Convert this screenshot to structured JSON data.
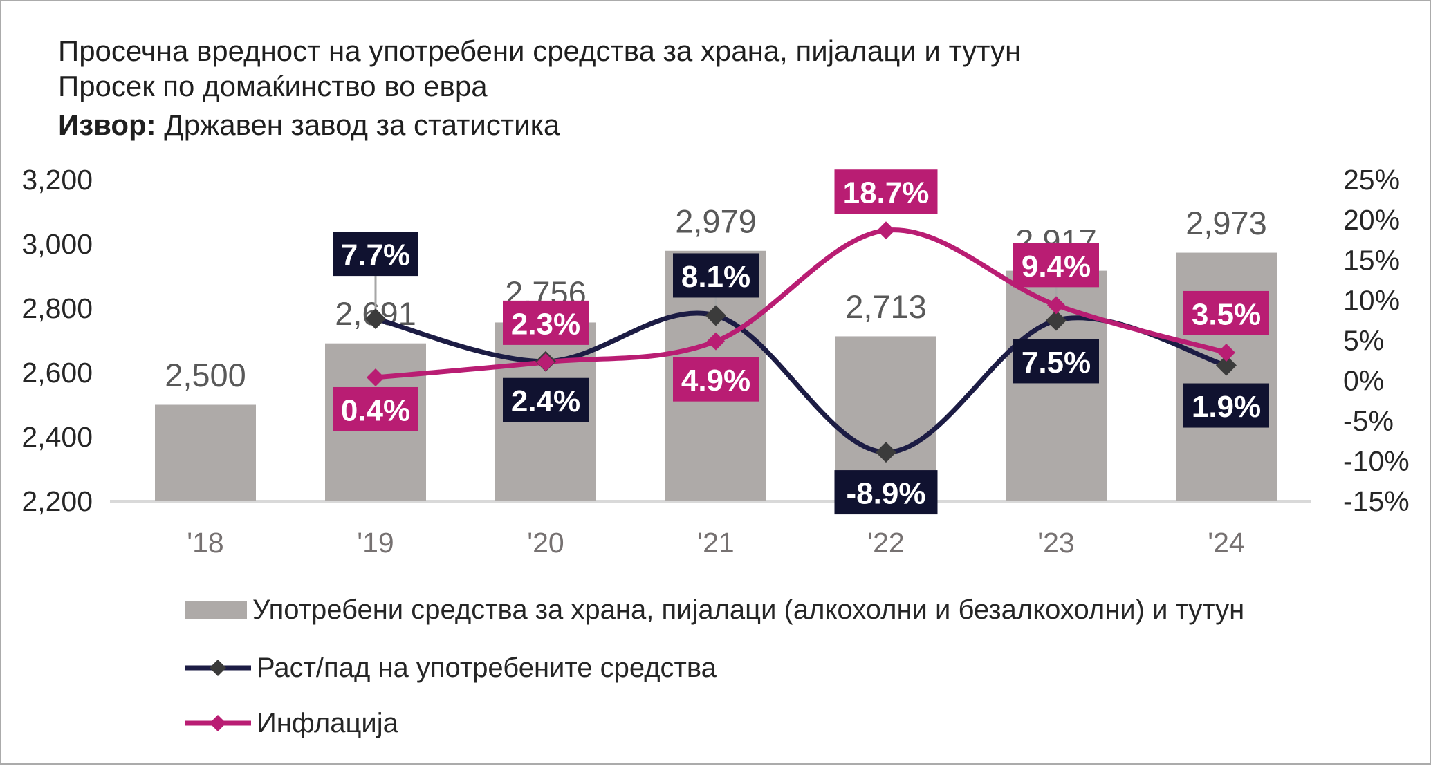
{
  "header": {
    "title": "Просечна вредност на употребени средства за храна, пијалаци и тутун",
    "subtitle": "Просек по домаќинство во евра",
    "source_label": "Извор:",
    "source_text": " Државен завод за статистика"
  },
  "colors": {
    "bar": "#AEAAA8",
    "navy_box": "#101230",
    "navy_line": "#1C1C44",
    "navy_marker": "#3B3B3B",
    "pink": "#B91D73",
    "axis_line": "#D9D9D9",
    "leader": "#A6A6A6",
    "axis_label": "#262626",
    "bar_label": "#595959",
    "x_label": "#767171",
    "box_text": "#FFFFFF"
  },
  "chart_data": {
    "type": "combo: bar + 2 smoothed lines",
    "title": "Просечна вредност на употребени средства за храна, пијалаци и тутун",
    "subtitle": "Просек по домаќинство во евра",
    "source": "Извор: Државен завод за статистика",
    "categories": [
      "'18",
      "'19",
      "'20",
      "'21",
      "'22",
      "'23",
      "'24"
    ],
    "grid": "off",
    "legend_position": "bottom-left",
    "left_axis": {
      "min": 2200,
      "max": 3200,
      "step": 200,
      "ticks": [
        {
          "value": 2200,
          "label": "2,200"
        },
        {
          "value": 2400,
          "label": "2,400"
        },
        {
          "value": 2600,
          "label": "2,600"
        },
        {
          "value": 2800,
          "label": "2,800"
        },
        {
          "value": 3000,
          "label": "3,000"
        },
        {
          "value": 3200,
          "label": "3,200"
        }
      ]
    },
    "right_axis": {
      "min": -15,
      "max": 25,
      "step": 5,
      "ticks": [
        {
          "value": -15,
          "label": "-15%"
        },
        {
          "value": -10,
          "label": "-10%"
        },
        {
          "value": -5,
          "label": "-5%"
        },
        {
          "value": 0,
          "label": "0%"
        },
        {
          "value": 5,
          "label": "5%"
        },
        {
          "value": 10,
          "label": "10%"
        },
        {
          "value": 15,
          "label": "15%"
        },
        {
          "value": 20,
          "label": "20%"
        },
        {
          "value": 25,
          "label": "25%"
        }
      ]
    },
    "bar_series": {
      "name": "Употребени средства за храна, пијалаци (алкохолни и безалкохолни) и тутун",
      "axis": "left",
      "values": [
        2500,
        2691,
        2756,
        2979,
        2713,
        2917,
        2973
      ],
      "value_labels": [
        "2,500",
        "2,691",
        "2,756",
        "2,979",
        "2,713",
        "2,917",
        "2,973"
      ]
    },
    "line_series": [
      {
        "name": "Раст/пад на употребените средства",
        "axis": "right",
        "color_key": "navy_line",
        "marker_color_key": "navy_marker",
        "box_color_key": "navy_box",
        "values": [
          null,
          7.7,
          2.4,
          8.1,
          -8.9,
          7.5,
          1.9
        ],
        "labels": [
          null,
          {
            "text": "7.7%",
            "side": "above",
            "gap": 62,
            "leader": true
          },
          {
            "text": "2.4%",
            "side": "below",
            "gap": 24,
            "leader": false
          },
          {
            "text": "8.1%",
            "side": "above",
            "gap": 26,
            "leader": true
          },
          {
            "text": "-8.9%",
            "side": "below",
            "gap": 26,
            "leader": false
          },
          {
            "text": "7.5%",
            "side": "below",
            "gap": 27,
            "leader": false
          },
          {
            "text": "1.9%",
            "side": "below",
            "gap": 26,
            "leader": false
          }
        ]
      },
      {
        "name": "Инфлација",
        "axis": "right",
        "color_key": "pink",
        "marker_color_key": "pink",
        "box_color_key": "pink",
        "values": [
          null,
          0.4,
          2.3,
          4.9,
          18.7,
          9.4,
          3.5
        ],
        "labels": [
          null,
          {
            "text": "0.4%",
            "side": "below",
            "gap": 14,
            "leader": false
          },
          {
            "text": "2.3%",
            "side": "above",
            "gap": 25,
            "leader": false
          },
          {
            "text": "4.9%",
            "side": "below",
            "gap": 23,
            "leader": false
          },
          {
            "text": "18.7%",
            "side": "above",
            "gap": 24,
            "leader": false
          },
          {
            "text": "9.4%",
            "side": "above",
            "gap": 26,
            "leader": true
          },
          {
            "text": "3.5%",
            "side": "above",
            "gap": 25,
            "leader": false
          }
        ]
      }
    ]
  },
  "legend": {
    "items": [
      {
        "label": "Употребени средства за храна, пијалаци (алкохолни и безалкохолни) и тутун",
        "type": "bar"
      },
      {
        "label": "Раст/пад на употребените средства",
        "type": "line"
      },
      {
        "label": "Инфлација",
        "type": "line"
      }
    ]
  }
}
